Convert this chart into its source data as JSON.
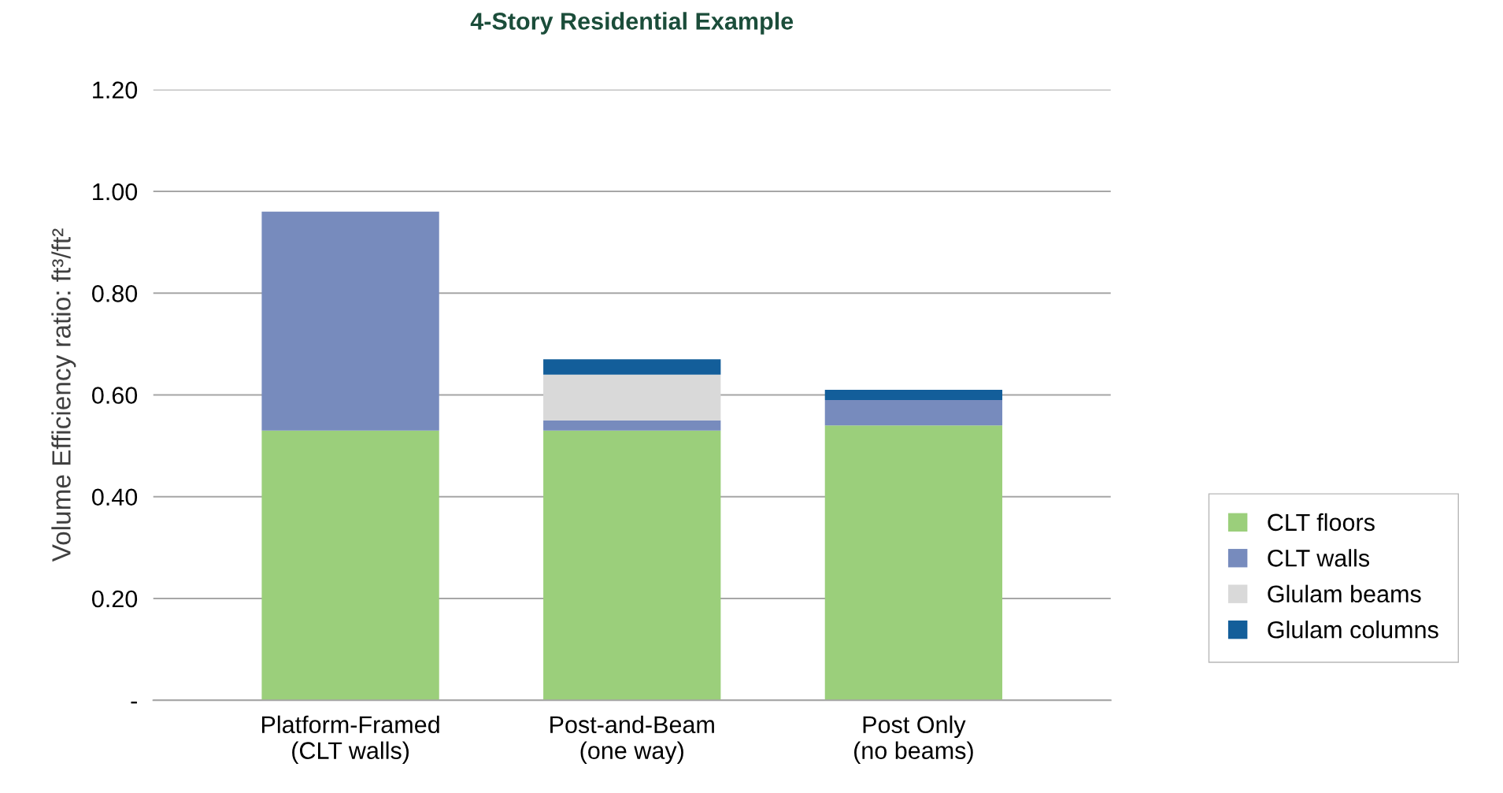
{
  "chart_data": {
    "type": "bar",
    "title": "4-Story Residential Example",
    "ylabel": "Volume Efficiency ratio: ft³/ft²",
    "stacked": true,
    "categories": [
      "Platform-Framed\n(CLT walls)",
      "Post-and-Beam\n(one way)",
      "Post Only\n(no beams)"
    ],
    "series": [
      {
        "name": "CLT floors",
        "color": "#9bcf7b",
        "values": [
          0.53,
          0.53,
          0.54
        ]
      },
      {
        "name": "CLT walls",
        "color": "#778bbd",
        "values": [
          0.43,
          0.02,
          0.05
        ]
      },
      {
        "name": "Glulam beams",
        "color": "#d9d9d9",
        "values": [
          0,
          0.09,
          0
        ]
      },
      {
        "name": "Glulam columns",
        "color": "#135e9a",
        "values": [
          0,
          0.03,
          0.02
        ]
      }
    ],
    "ylim": [
      0,
      1.2
    ],
    "yticks": [
      {
        "value": 0,
        "label": "-"
      },
      {
        "value": 0.2,
        "label": "0.20"
      },
      {
        "value": 0.4,
        "label": "0.40"
      },
      {
        "value": 0.6,
        "label": "0.60"
      },
      {
        "value": 0.8,
        "label": "0.80"
      },
      {
        "value": 1.0,
        "label": "1.00"
      },
      {
        "value": 1.2,
        "label": "1.20"
      }
    ],
    "grid": "y",
    "legend": "right"
  }
}
